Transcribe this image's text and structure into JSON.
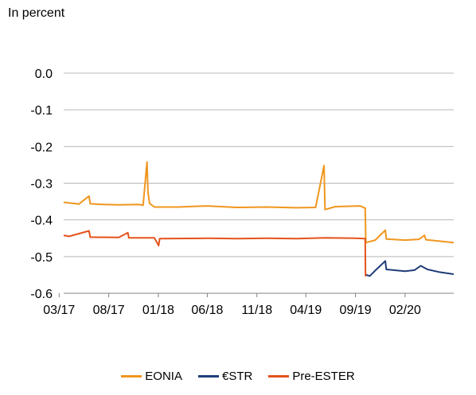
{
  "unit_label": "In percent",
  "chart_data": {
    "type": "line",
    "title": "",
    "xlabel": "",
    "ylabel": "In percent",
    "ylim": [
      -0.6,
      0.0
    ],
    "y_ticks": [
      "0.0",
      "-0.1",
      "-0.2",
      "-0.3",
      "-0.4",
      "-0.5",
      "-0.6"
    ],
    "x_ticks": [
      "03/17",
      "08/17",
      "01/18",
      "06/18",
      "11/18",
      "04/19",
      "09/19",
      "02/20"
    ],
    "xlim": [
      "2017-03-15",
      "2020-06-30"
    ],
    "grid": "horizontal",
    "legend_position": "bottom",
    "series": [
      {
        "name": "EONIA",
        "color": "#F0961E",
        "points": [
          [
            "2017-03-15",
            -0.352
          ],
          [
            "2017-05-01",
            -0.357
          ],
          [
            "2017-06-01",
            -0.335
          ],
          [
            "2017-06-05",
            -0.356
          ],
          [
            "2017-07-15",
            -0.358
          ],
          [
            "2017-09-01",
            -0.359
          ],
          [
            "2017-11-01",
            -0.358
          ],
          [
            "2017-11-15",
            -0.36
          ],
          [
            "2017-11-27",
            -0.242
          ],
          [
            "2017-11-30",
            -0.325
          ],
          [
            "2017-12-05",
            -0.355
          ],
          [
            "2017-12-20",
            -0.365
          ],
          [
            "2018-03-01",
            -0.365
          ],
          [
            "2018-06-01",
            -0.362
          ],
          [
            "2018-09-01",
            -0.366
          ],
          [
            "2018-12-01",
            -0.365
          ],
          [
            "2019-03-01",
            -0.367
          ],
          [
            "2019-05-01",
            -0.366
          ],
          [
            "2019-05-27",
            -0.252
          ],
          [
            "2019-05-30",
            -0.372
          ],
          [
            "2019-07-01",
            -0.364
          ],
          [
            "2019-09-15",
            -0.362
          ],
          [
            "2019-10-01",
            -0.368
          ],
          [
            "2019-10-03",
            -0.462
          ],
          [
            "2019-11-01",
            -0.455
          ],
          [
            "2019-12-02",
            -0.428
          ],
          [
            "2019-12-05",
            -0.452
          ],
          [
            "2020-02-01",
            -0.455
          ],
          [
            "2020-03-15",
            -0.453
          ],
          [
            "2020-04-01",
            -0.442
          ],
          [
            "2020-04-05",
            -0.454
          ],
          [
            "2020-06-30",
            -0.462
          ]
        ]
      },
      {
        "name": "€STR",
        "color": "#1F3C78",
        "points": [
          [
            "2019-10-02",
            -0.549
          ],
          [
            "2019-10-15",
            -0.553
          ],
          [
            "2019-11-01",
            -0.538
          ],
          [
            "2019-12-02",
            -0.512
          ],
          [
            "2019-12-05",
            -0.535
          ],
          [
            "2020-02-01",
            -0.54
          ],
          [
            "2020-03-01",
            -0.537
          ],
          [
            "2020-03-20",
            -0.525
          ],
          [
            "2020-04-10",
            -0.535
          ],
          [
            "2020-05-15",
            -0.542
          ],
          [
            "2020-06-30",
            -0.548
          ]
        ]
      },
      {
        "name": "Pre-ESTER",
        "color": "#E5521A",
        "points": [
          [
            "2017-03-15",
            -0.442
          ],
          [
            "2017-04-01",
            -0.445
          ],
          [
            "2017-06-01",
            -0.43
          ],
          [
            "2017-06-05",
            -0.447
          ],
          [
            "2017-09-01",
            -0.448
          ],
          [
            "2017-09-29",
            -0.435
          ],
          [
            "2017-10-02",
            -0.449
          ],
          [
            "2017-12-20",
            -0.449
          ],
          [
            "2018-01-02",
            -0.47
          ],
          [
            "2018-01-05",
            -0.451
          ],
          [
            "2018-06-01",
            -0.45
          ],
          [
            "2018-09-01",
            -0.451
          ],
          [
            "2018-12-01",
            -0.45
          ],
          [
            "2019-03-01",
            -0.451
          ],
          [
            "2019-06-01",
            -0.449
          ],
          [
            "2019-09-01",
            -0.45
          ],
          [
            "2019-10-01",
            -0.451
          ],
          [
            "2019-10-02",
            -0.554
          ]
        ]
      }
    ]
  }
}
